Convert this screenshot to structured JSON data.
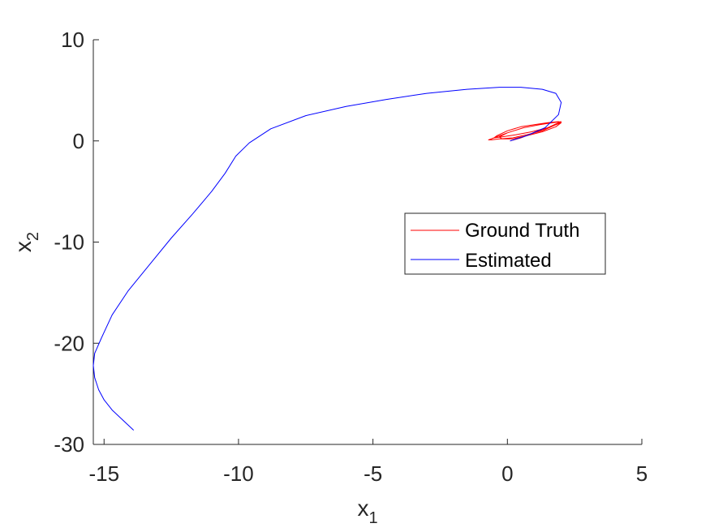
{
  "chart_data": {
    "type": "line",
    "title": "",
    "xlabel": {
      "base": "x",
      "sub": "1"
    },
    "ylabel": {
      "base": "x",
      "sub": "2"
    },
    "xlim": [
      -15.4,
      5
    ],
    "ylim": [
      -30,
      10
    ],
    "xticks": [
      -15,
      -10,
      -5,
      0,
      5
    ],
    "yticks": [
      -30,
      -20,
      -10,
      0,
      10
    ],
    "xtick_labels": [
      "-15",
      "-10",
      "-5",
      "0",
      "5"
    ],
    "ytick_labels": [
      "-30",
      "-20",
      "-10",
      "0",
      "10"
    ],
    "grid": false,
    "legend_placement": "right-center",
    "series": [
      {
        "name": "Ground Truth",
        "color": "#ff0000",
        "x": [
          0.1,
          0.5,
          1.0,
          1.5,
          1.9,
          2.0,
          1.8,
          1.3,
          0.7,
          0.2,
          -0.3,
          -0.6,
          -0.7,
          -0.5,
          0.0,
          0.6,
          1.2,
          1.7,
          2.0,
          1.9,
          1.5,
          0.9,
          0.3,
          -0.2,
          -0.5,
          -0.4,
          0.0,
          0.5,
          1.0,
          1.5,
          1.9,
          2.0,
          1.8,
          1.3,
          0.7,
          0.2,
          -0.2,
          -0.3,
          0.0
        ],
        "y": [
          0.0,
          0.3,
          0.8,
          1.3,
          1.8,
          1.9,
          1.6,
          1.0,
          0.6,
          0.3,
          0.2,
          0.1,
          0.1,
          0.3,
          0.8,
          1.3,
          1.6,
          1.8,
          1.9,
          1.7,
          1.3,
          0.9,
          0.6,
          0.4,
          0.3,
          0.5,
          1.0,
          1.4,
          1.6,
          1.8,
          1.9,
          1.8,
          1.4,
          0.9,
          0.5,
          0.2,
          0.2,
          0.4,
          0.8
        ]
      },
      {
        "name": "Estimated",
        "color": "#0000ff",
        "x": [
          0.1,
          0.7,
          1.4,
          1.9,
          2.0,
          1.8,
          1.3,
          0.5,
          -0.3,
          -1.5,
          -3.0,
          -4.5,
          -6.0,
          -7.5,
          -8.8,
          -9.6,
          -10.1,
          -10.5,
          -11.0,
          -11.7,
          -12.5,
          -13.3,
          -14.1,
          -14.7,
          -15.1,
          -15.35,
          -15.4,
          -15.35,
          -15.2,
          -15.0,
          -14.7,
          -14.3,
          -13.9
        ],
        "y": [
          0.0,
          0.5,
          1.3,
          2.6,
          3.8,
          4.7,
          5.1,
          5.3,
          5.3,
          5.1,
          4.7,
          4.1,
          3.4,
          2.5,
          1.2,
          -0.2,
          -1.5,
          -3.2,
          -5.0,
          -7.2,
          -9.6,
          -12.2,
          -14.8,
          -17.2,
          -19.5,
          -21.0,
          -22.2,
          -23.4,
          -24.6,
          -25.6,
          -26.6,
          -27.6,
          -28.6
        ]
      }
    ]
  }
}
